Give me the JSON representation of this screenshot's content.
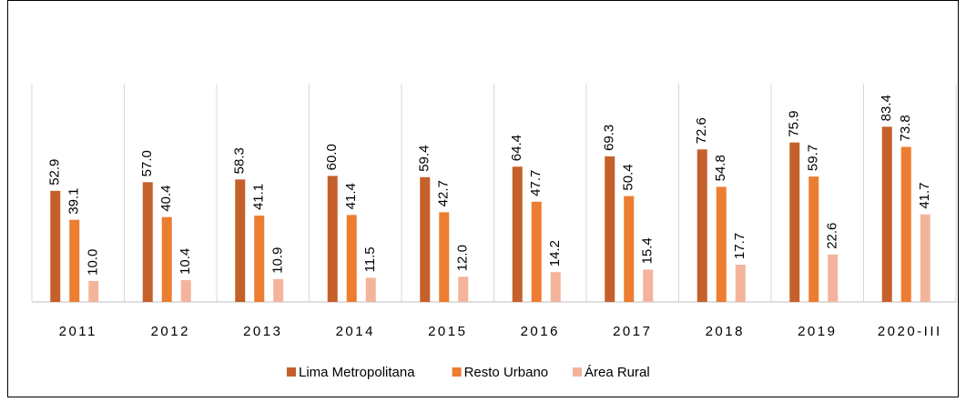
{
  "chart_data": {
    "type": "bar",
    "categories": [
      "2011",
      "2012",
      "2013",
      "2014",
      "2015",
      "2016",
      "2017",
      "2018",
      "2019",
      "2020-III"
    ],
    "series": [
      {
        "name": "Lima Metropolitana",
        "color": "#c5602b",
        "values": [
          52.9,
          57.0,
          58.3,
          60.0,
          59.4,
          64.4,
          69.3,
          72.6,
          75.9,
          83.4
        ],
        "value_labels": [
          "52.9",
          "57.0",
          "58.3",
          "60.0",
          "59.4",
          "64.4",
          "69.3",
          "72.6",
          "75.9",
          "83.4"
        ]
      },
      {
        "name": "Resto Urbano",
        "color": "#ed7d31",
        "values": [
          39.1,
          40.4,
          41.1,
          41.4,
          42.7,
          47.7,
          50.4,
          54.8,
          59.7,
          73.8
        ],
        "value_labels": [
          "39.1",
          "40.4",
          "41.1",
          "41.4",
          "42.7",
          "47.7",
          "50.4",
          "54.8",
          "59.7",
          "73.8"
        ]
      },
      {
        "name": "Área Rural",
        "color": "#f4b49b",
        "values": [
          10.0,
          10.4,
          10.9,
          11.5,
          12.0,
          14.2,
          15.4,
          17.7,
          22.6,
          41.7
        ],
        "value_labels": [
          "10.0",
          "10.4",
          "10.9",
          "11.5",
          "12.0",
          "14.2",
          "15.4",
          "17.7",
          "22.6",
          "41.7"
        ]
      }
    ],
    "ylim": [
      0,
      100
    ],
    "legend": "bottom"
  }
}
